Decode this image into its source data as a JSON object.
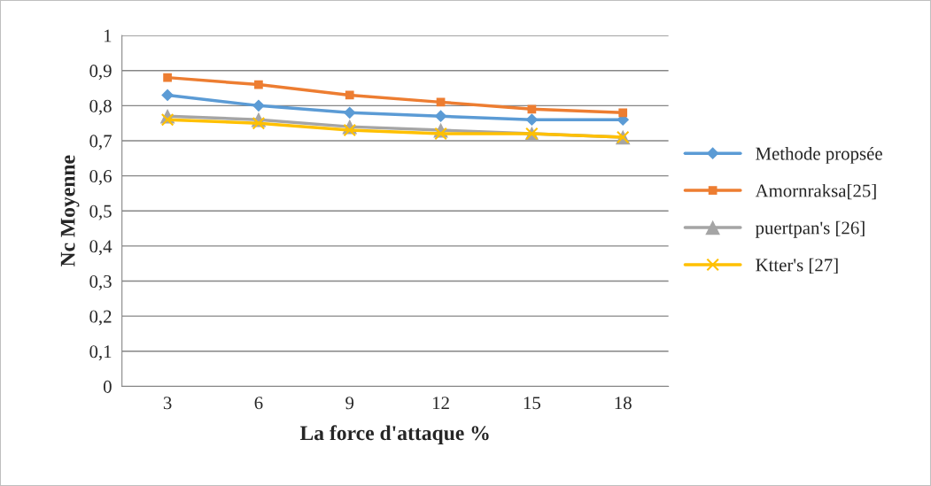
{
  "chart_data": {
    "type": "line",
    "xlabel": "La force d'attaque %",
    "ylabel": "Nc Moyenne",
    "categories": [
      "3",
      "6",
      "9",
      "12",
      "15",
      "18"
    ],
    "series": [
      {
        "name": "Methode propsée",
        "color": "#5b9bd5",
        "marker": "diamond",
        "values": [
          0.83,
          0.8,
          0.78,
          0.77,
          0.76,
          0.76
        ]
      },
      {
        "name": "Amornraksa[25]",
        "color": "#ed7d31",
        "marker": "square",
        "values": [
          0.88,
          0.86,
          0.83,
          0.81,
          0.79,
          0.78
        ]
      },
      {
        "name": "puertpan's [26]",
        "color": "#a5a5a5",
        "marker": "triangle",
        "values": [
          0.77,
          0.76,
          0.74,
          0.73,
          0.72,
          0.71
        ]
      },
      {
        "name": "Ktter's [27]",
        "color": "#ffc000",
        "marker": "cross",
        "values": [
          0.76,
          0.75,
          0.73,
          0.72,
          0.72,
          0.71
        ]
      }
    ],
    "ylim": [
      0,
      1
    ],
    "yticks": [
      0,
      {
        "value": 0.1,
        "label": "0,1"
      },
      {
        "value": 0.2,
        "label": "0,2"
      },
      {
        "value": 0.3,
        "label": "0,3"
      },
      {
        "value": 0.4,
        "label": "0,4"
      },
      {
        "value": 0.5,
        "label": "0,5"
      },
      {
        "value": 0.6,
        "label": "0,6"
      },
      {
        "value": 0.7,
        "label": "0,7"
      },
      {
        "value": 0.8,
        "label": "0,8"
      },
      {
        "value": 0.9,
        "label": "0,9"
      },
      1
    ],
    "grid": "y",
    "legend": "right",
    "line_style": "solid"
  }
}
